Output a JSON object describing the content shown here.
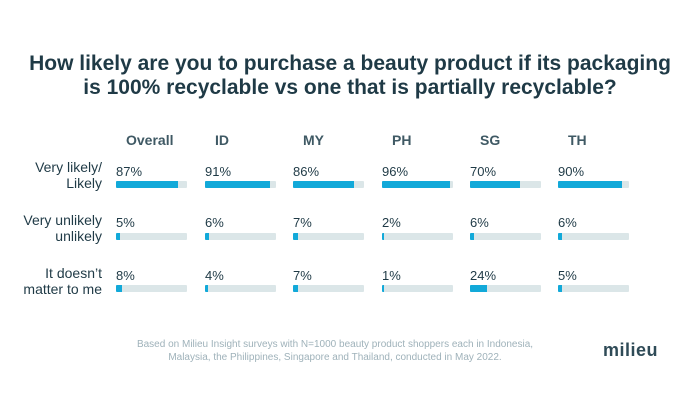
{
  "title": {
    "line1": "How likely are you to purchase a beauty product if its packaging",
    "line2": "is 100% recyclable vs one that is partially recyclable?"
  },
  "chart_data": {
    "type": "bar",
    "title": "How likely are you to purchase a beauty product if its packaging is 100% recyclable vs one that is partially recyclable?",
    "columns": [
      "Overall",
      "ID",
      "MY",
      "PH",
      "SG",
      "TH"
    ],
    "rows": [
      {
        "label_lines": [
          "Very likely/",
          "Likely"
        ],
        "values": [
          87,
          91,
          86,
          96,
          70,
          90
        ]
      },
      {
        "label_lines": [
          "Very unlikely",
          "unlikely"
        ],
        "values": [
          5,
          6,
          7,
          2,
          6,
          6
        ]
      },
      {
        "label_lines": [
          "It doesn’t",
          "matter to me"
        ],
        "values": [
          8,
          4,
          7,
          1,
          24,
          5
        ]
      }
    ],
    "ylim": [
      0,
      100
    ]
  },
  "colors": {
    "bar": "#12a9d9",
    "track": "#dbe6e8",
    "title": "#1f3a46"
  },
  "footnote": {
    "line1": "Based on Milieu Insight surveys with N=1000 beauty product shoppers each in Indonesia,",
    "line2": "Malaysia, the Philippines, Singapore and Thailand, conducted in May 2022."
  },
  "brand": "milieu"
}
